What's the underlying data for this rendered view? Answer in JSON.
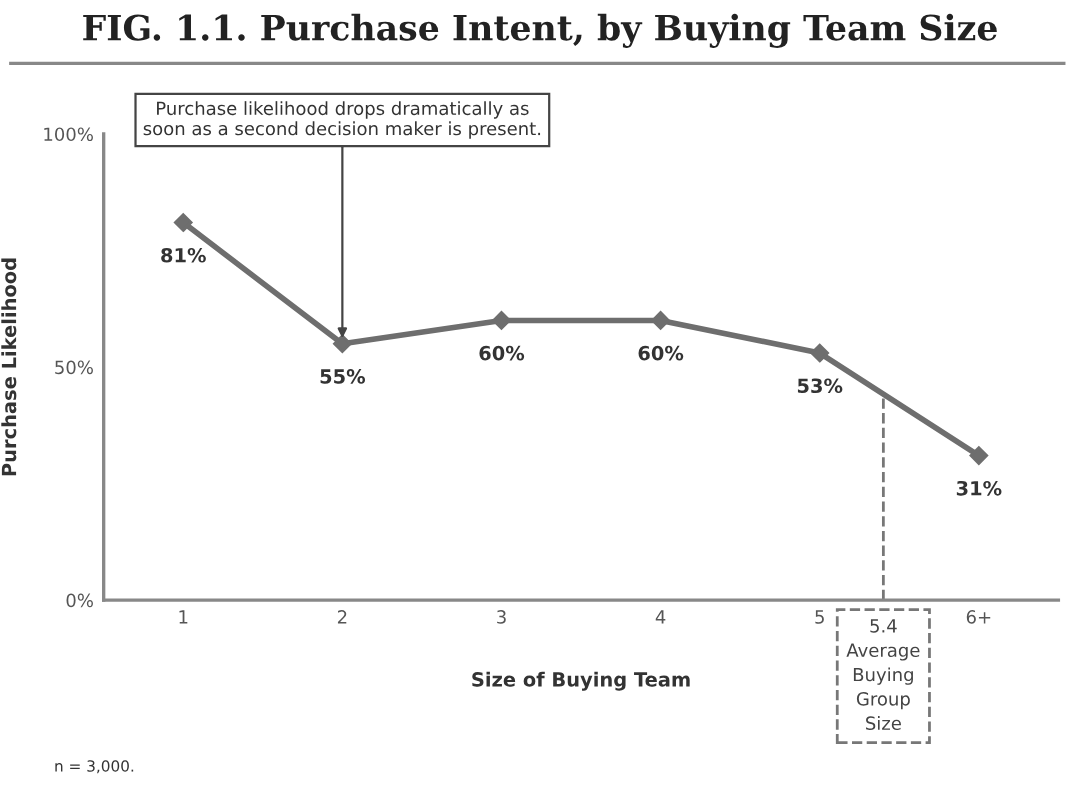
{
  "chart_data": {
    "type": "line",
    "title": "FIG. 1.1. Purchase Intent, by Buying Team Size",
    "xlabel": "Size of Buying Team",
    "ylabel": "Purchase Likelihood",
    "x": [
      1,
      2,
      3,
      4,
      5,
      6
    ],
    "series": [
      {
        "color": "#6e6e6e",
        "values": [
          81,
          55,
          60,
          60,
          53,
          31
        ],
        "value_labels": [
          "81%",
          "55%",
          "60%",
          "60%",
          "53%",
          "31%"
        ]
      }
    ],
    "xlim": [
      0.5,
      6.5
    ],
    "xticks": [
      1,
      2,
      3,
      4,
      5,
      {
        "value": 6,
        "label": "6+"
      }
    ],
    "ylim": [
      0,
      100
    ],
    "yticks": [
      {
        "value": 0,
        "label": "0%"
      },
      {
        "value": 50,
        "label": "50%"
      },
      {
        "value": 100,
        "label": "100%"
      }
    ],
    "ref_lines": [
      {
        "axis": "x",
        "value": 5.4,
        "label": "5.4\nAverage\nBuying\nGroup\nSize",
        "line_style": "dashed",
        "color": "#777777"
      }
    ],
    "annotations": [
      {
        "text": "Purchase likelihood drops dramatically as\nsoon as a second decision maker is present.",
        "x": 2,
        "y": 55
      },
      "n = 3,000."
    ],
    "marker": "diamond",
    "line_style": "solid",
    "grid": false,
    "legend": false
  }
}
